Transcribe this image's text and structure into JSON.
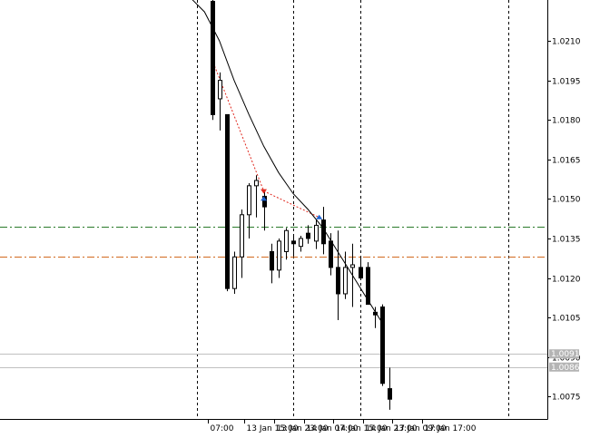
{
  "chart_data": {
    "type": "candlestick",
    "symbol": "",
    "y_axis": {
      "ylim": [
        1.00665,
        1.02255
      ],
      "tick_labels": [
        "1.0210",
        "1.0195",
        "1.0180",
        "1.0165",
        "1.0150",
        "1.0135",
        "1.0120",
        "1.0105",
        "1.0090",
        "1.0075"
      ],
      "tick_values": [
        1.021,
        1.0195,
        1.018,
        1.0165,
        1.015,
        1.0135,
        1.012,
        1.0105,
        1.009,
        1.0075
      ]
    },
    "x_axis": {
      "tick_labels": [
        "07:00",
        "13 Jan 15:00",
        "13 Jan 23:00",
        "14 Jan 07:00",
        "14 Jan 15:00",
        "14 Jan 23:00",
        "17 Jan 09:00",
        "17 Jan 17:00"
      ],
      "tick_slots": [
        -0.5,
        4.4,
        8.4,
        12.4,
        16.4,
        20.4,
        24.4,
        28.4
      ]
    },
    "session_separators": [
      -2,
      11,
      20,
      40
    ],
    "candles": [
      {
        "o": 1.0225,
        "h": 1.0226,
        "l": 1.018,
        "c": 1.0182
      },
      {
        "o": 1.0188,
        "h": 1.0198,
        "l": 1.0176,
        "c": 1.0195
      },
      {
        "o": 1.0182,
        "h": 1.0182,
        "l": 1.0115,
        "c": 1.0116
      },
      {
        "o": 1.0116,
        "h": 1.013,
        "l": 1.0114,
        "c": 1.0128
      },
      {
        "o": 1.0128,
        "h": 1.0146,
        "l": 1.012,
        "c": 1.0144
      },
      {
        "o": 1.0144,
        "h": 1.0156,
        "l": 1.0135,
        "c": 1.0155
      },
      {
        "o": 1.0155,
        "h": 1.0159,
        "l": 1.0143,
        "c": 1.0157
      },
      {
        "o": 1.0151,
        "h": 1.0153,
        "l": 1.0138,
        "c": 1.0147
      },
      {
        "o": 1.013,
        "h": 1.0133,
        "l": 1.0118,
        "c": 1.0123
      },
      {
        "o": 1.0123,
        "h": 1.0135,
        "l": 1.012,
        "c": 1.0134
      },
      {
        "o": 1.013,
        "h": 1.0139,
        "l": 1.0127,
        "c": 1.0138
      },
      {
        "o": 1.0134,
        "h": 1.0136,
        "l": 1.0128,
        "c": 1.0133
      },
      {
        "o": 1.0132,
        "h": 1.0136,
        "l": 1.013,
        "c": 1.0135
      },
      {
        "o": 1.0137,
        "h": 1.014,
        "l": 1.0133,
        "c": 1.0135
      },
      {
        "o": 1.0134,
        "h": 1.0142,
        "l": 1.0131,
        "c": 1.014
      },
      {
        "o": 1.0142,
        "h": 1.0147,
        "l": 1.0129,
        "c": 1.0133
      },
      {
        "o": 1.0134,
        "h": 1.0137,
        "l": 1.0121,
        "c": 1.0124
      },
      {
        "o": 1.0124,
        "h": 1.0138,
        "l": 1.0104,
        "c": 1.0114
      },
      {
        "o": 1.0114,
        "h": 1.013,
        "l": 1.0112,
        "c": 1.0124
      },
      {
        "o": 1.0124,
        "h": 1.0133,
        "l": 1.0109,
        "c": 1.0125
      },
      {
        "o": 1.0124,
        "h": 1.0128,
        "l": 1.012,
        "c": 1.012
      },
      {
        "o": 1.0124,
        "h": 1.0126,
        "l": 1.0111,
        "c": 1.011
      },
      {
        "o": 1.0107,
        "h": 1.0109,
        "l": 1.0101,
        "c": 1.0106
      },
      {
        "o": 1.0109,
        "h": 1.011,
        "l": 1.0079,
        "c": 1.008
      },
      {
        "o": 1.0078,
        "h": 1.0086,
        "l": 1.007,
        "c": 1.0074
      }
    ],
    "candle_start_slot": 0,
    "moving_average": [
      {
        "slot": -3.5,
        "y": 1.0228
      },
      {
        "slot": -1,
        "y": 1.0221
      },
      {
        "slot": 1,
        "y": 1.021
      },
      {
        "slot": 3,
        "y": 1.0195
      },
      {
        "slot": 5,
        "y": 1.0182
      },
      {
        "slot": 7,
        "y": 1.017
      },
      {
        "slot": 9,
        "y": 1.016
      },
      {
        "slot": 11,
        "y": 1.0152
      },
      {
        "slot": 13,
        "y": 1.0146
      },
      {
        "slot": 15,
        "y": 1.0139
      },
      {
        "slot": 17,
        "y": 1.013
      },
      {
        "slot": 19,
        "y": 1.0121
      },
      {
        "slot": 21,
        "y": 1.0112
      },
      {
        "slot": 23,
        "y": 1.0103
      }
    ],
    "trade_line": [
      {
        "slot": 0,
        "y": 1.0203
      },
      {
        "slot": 7,
        "y": 1.0153
      },
      {
        "slot": 14.5,
        "y": 1.0143
      }
    ],
    "trade_markers": [
      {
        "slot": 7,
        "y": 1.0153,
        "kind": "sell"
      },
      {
        "slot": 7,
        "y": 1.015,
        "kind": "buy"
      },
      {
        "slot": 14.5,
        "y": 1.0143,
        "kind": "buy"
      }
    ],
    "horizontal_levels": [
      {
        "y": 1.01393,
        "style": "dashdot",
        "color": "#2a7a2a"
      },
      {
        "y": 1.01282,
        "style": "dashdot",
        "color": "#d2691e"
      },
      {
        "y": 1.00912,
        "style": "solid",
        "color": "#c0c0c0"
      },
      {
        "y": 1.00862,
        "style": "solid",
        "color": "#c0c0c0"
      }
    ],
    "price_badges": [
      {
        "label": "1.0091",
        "y": 1.00912
      },
      {
        "label": "1.0086",
        "y": 1.00862
      }
    ],
    "grid": false
  }
}
